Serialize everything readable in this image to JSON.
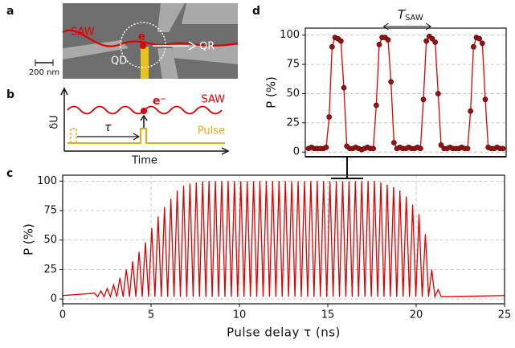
{
  "chart_data": [
    {
      "type": "line",
      "color": "#e00000",
      "markers": false,
      "x_label": "Pulse delay τ (ns)",
      "y_label": "P (%)",
      "xlim": [
        0,
        25
      ],
      "xticks": [
        0,
        5,
        10,
        15,
        20,
        25
      ],
      "ylim": [
        -4,
        105
      ],
      "yticks": [
        0,
        25,
        50,
        75,
        100
      ],
      "grid": true,
      "x": [
        0,
        1.8,
        1.98,
        2.16,
        2.34,
        2.52,
        2.7,
        2.88,
        3.06,
        3.24,
        3.42,
        3.6,
        3.78,
        3.96,
        4.14,
        4.32,
        4.5,
        4.68,
        4.86,
        5.04,
        5.22,
        5.4,
        5.58,
        5.76,
        5.94,
        6.12,
        6.3,
        6.48,
        6.66,
        6.84,
        7.02,
        7.2,
        7.38,
        7.56,
        7.74,
        7.92,
        8.1,
        8.28,
        8.46,
        8.64,
        8.82,
        9.0,
        9.18,
        9.36,
        9.54,
        9.72,
        9.9,
        10.08,
        10.26,
        10.44,
        10.62,
        10.8,
        10.98,
        11.16,
        11.34,
        11.52,
        11.7,
        11.88,
        12.06,
        12.24,
        12.42,
        12.6,
        12.78,
        12.96,
        13.14,
        13.32,
        13.5,
        13.68,
        13.86,
        14.04,
        14.22,
        14.4,
        14.58,
        14.76,
        14.94,
        15.12,
        15.3,
        15.48,
        15.66,
        15.84,
        16.02,
        16.2,
        16.38,
        16.56,
        16.74,
        16.92,
        17.1,
        17.28,
        17.46,
        17.64,
        17.82,
        18.0,
        18.18,
        18.36,
        18.54,
        18.72,
        18.9,
        19.08,
        19.26,
        19.44,
        19.62,
        19.8,
        19.98,
        20.16,
        20.34,
        20.52,
        20.7,
        20.88,
        21.06,
        21.24,
        21.42,
        25
      ],
      "values": [
        3,
        5,
        2,
        7,
        2,
        9,
        2,
        12,
        2,
        18,
        2,
        25,
        2,
        32,
        2,
        40,
        2,
        48,
        2,
        60,
        2,
        70,
        2,
        78,
        2,
        85,
        2,
        92,
        2,
        96,
        2,
        98,
        2,
        99,
        2,
        100,
        2,
        100,
        2,
        100,
        2,
        100,
        2,
        100,
        2,
        100,
        2,
        100,
        2,
        100,
        2,
        100,
        2,
        100,
        2,
        100,
        2,
        100,
        2,
        100,
        2,
        100,
        2,
        100,
        2,
        100,
        2,
        100,
        2,
        100,
        2,
        100,
        2,
        100,
        2,
        100,
        2,
        100,
        2,
        100,
        2,
        100,
        2,
        100,
        2,
        100,
        2,
        100,
        2,
        100,
        2,
        99,
        2,
        97,
        2,
        95,
        2,
        92,
        2,
        87,
        2,
        80,
        2,
        72,
        2,
        55,
        2,
        25,
        2,
        8,
        2,
        3
      ]
    },
    {
      "type": "line",
      "color": "#e00000",
      "marker_color": "#a01010",
      "markers": true,
      "y_label": "P (%)",
      "ylim": [
        -4,
        106
      ],
      "yticks": [
        0,
        25,
        50,
        75,
        100
      ],
      "grid": true,
      "annotation": {
        "text": "T",
        "subscript": "SAW"
      },
      "values": [
        3,
        4,
        3,
        3,
        3,
        3,
        4,
        30,
        90,
        98,
        97,
        95,
        55,
        5,
        3,
        3,
        4,
        3,
        2,
        3,
        4,
        3,
        3,
        40,
        92,
        98,
        98,
        96,
        60,
        8,
        3,
        4,
        3,
        3,
        4,
        3,
        3,
        4,
        3,
        45,
        95,
        99,
        97,
        94,
        50,
        6,
        3,
        3,
        4,
        3,
        3,
        3,
        4,
        3,
        3,
        35,
        90,
        98,
        97,
        93,
        45,
        4,
        3,
        3,
        4,
        3,
        3
      ]
    }
  ],
  "panels": [
    "a",
    "b",
    "c",
    "d"
  ],
  "schematic_a": {
    "saw": "SAW",
    "electron": "e",
    "dot": "QD",
    "receiver": "QR",
    "scale": "200 nm"
  },
  "schematic_b": {
    "saw": "SAW",
    "pulse": "Pulse",
    "electron": "e⁻",
    "delay": "τ",
    "y_axis": "δU",
    "x_axis": "Time"
  }
}
